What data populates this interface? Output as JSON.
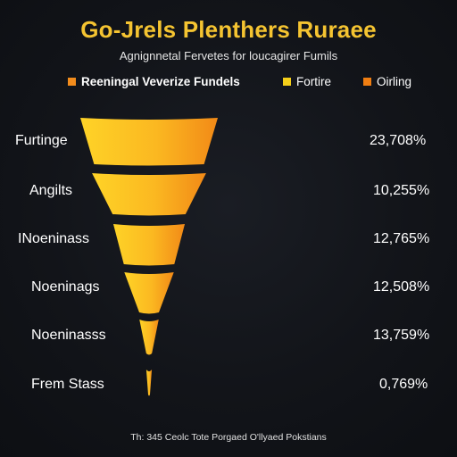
{
  "chart_data": {
    "type": "funnel",
    "title": "Go-Jrels Plenthers Ruraee",
    "subtitle": "Agnignnetal Fervetes for loucagirer Fumils",
    "legend": [
      {
        "label": "Reeningal Veverize Fundels",
        "color": "#f28c1c"
      },
      {
        "label": "Fortire",
        "color": "#f5cf1a"
      },
      {
        "label": "Oirling",
        "color": "#f07e12"
      }
    ],
    "legend_placement": "top",
    "categories": [
      "Furtinge",
      "Angilts",
      "INoeninass",
      "Noeninags",
      "Noeninasss",
      "Frem Stass"
    ],
    "value_labels": [
      "23,708%",
      "10,255%",
      "12,765%",
      "12,508%",
      "13,759%",
      "0,769%"
    ],
    "relative_widths": [
      1.0,
      0.83,
      0.52,
      0.36,
      0.14,
      0.04
    ],
    "footer": "Th: 345 Ceolc Tote Porgaed O'llyaed Pokstians",
    "colors": {
      "gradient_start": "#fed327",
      "gradient_end": "#f28a17",
      "title": "#f5c431",
      "background": "#121419"
    }
  }
}
